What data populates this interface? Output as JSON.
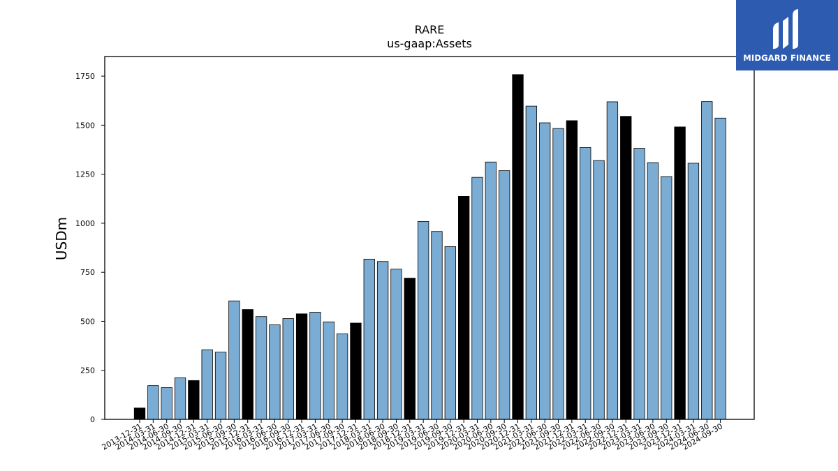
{
  "logo": {
    "text": "MIDGARD FINANCE",
    "bg_color": "#2c5bb0",
    "fg_color": "#ffffff"
  },
  "colors": {
    "bar_default": "#7bacd3",
    "bar_highlight": "#000000"
  },
  "chart_data": {
    "type": "bar",
    "title": "RARE",
    "subtitle": "us-gaap:Assets",
    "xlabel": "",
    "ylabel": "USDm",
    "ylim": [
      0,
      1850
    ],
    "yticks": [
      0,
      250,
      500,
      750,
      1000,
      1250,
      1500,
      1750
    ],
    "grid": false,
    "categories": [
      "2013-12-31",
      "2014-03-31",
      "2014-06-30",
      "2014-09-30",
      "2014-12-31",
      "2015-03-31",
      "2015-06-30",
      "2015-09-30",
      "2015-12-31",
      "2016-03-31",
      "2016-06-30",
      "2016-09-30",
      "2016-12-31",
      "2017-03-31",
      "2017-06-30",
      "2017-09-30",
      "2017-12-31",
      "2018-03-31",
      "2018-06-30",
      "2018-09-30",
      "2018-12-31",
      "2019-03-31",
      "2019-06-30",
      "2019-09-30",
      "2019-12-31",
      "2020-03-31",
      "2020-06-30",
      "2020-09-30",
      "2020-12-31",
      "2021-03-31",
      "2021-06-30",
      "2021-09-30",
      "2021-12-31",
      "2022-03-31",
      "2022-06-30",
      "2022-09-30",
      "2022-12-31",
      "2023-03-31",
      "2023-06-30",
      "2023-09-30",
      "2023-12-31",
      "2024-03-31",
      "2024-06-30",
      "2024-09-30"
    ],
    "values": [
      58,
      172,
      162,
      212,
      198,
      355,
      343,
      604,
      560,
      524,
      482,
      514,
      538,
      546,
      497,
      436,
      491,
      817,
      805,
      766,
      720,
      1009,
      958,
      881,
      1137,
      1234,
      1312,
      1268,
      1758,
      1597,
      1512,
      1483,
      1523,
      1386,
      1320,
      1619,
      1545,
      1382,
      1309,
      1238,
      1491,
      1306,
      1620,
      1536
    ],
    "highlight": [
      true,
      false,
      false,
      false,
      true,
      false,
      false,
      false,
      true,
      false,
      false,
      false,
      true,
      false,
      false,
      false,
      true,
      false,
      false,
      false,
      true,
      false,
      false,
      false,
      true,
      false,
      false,
      false,
      true,
      false,
      false,
      false,
      true,
      false,
      false,
      false,
      true,
      false,
      false,
      false,
      true,
      false,
      false,
      false
    ]
  }
}
